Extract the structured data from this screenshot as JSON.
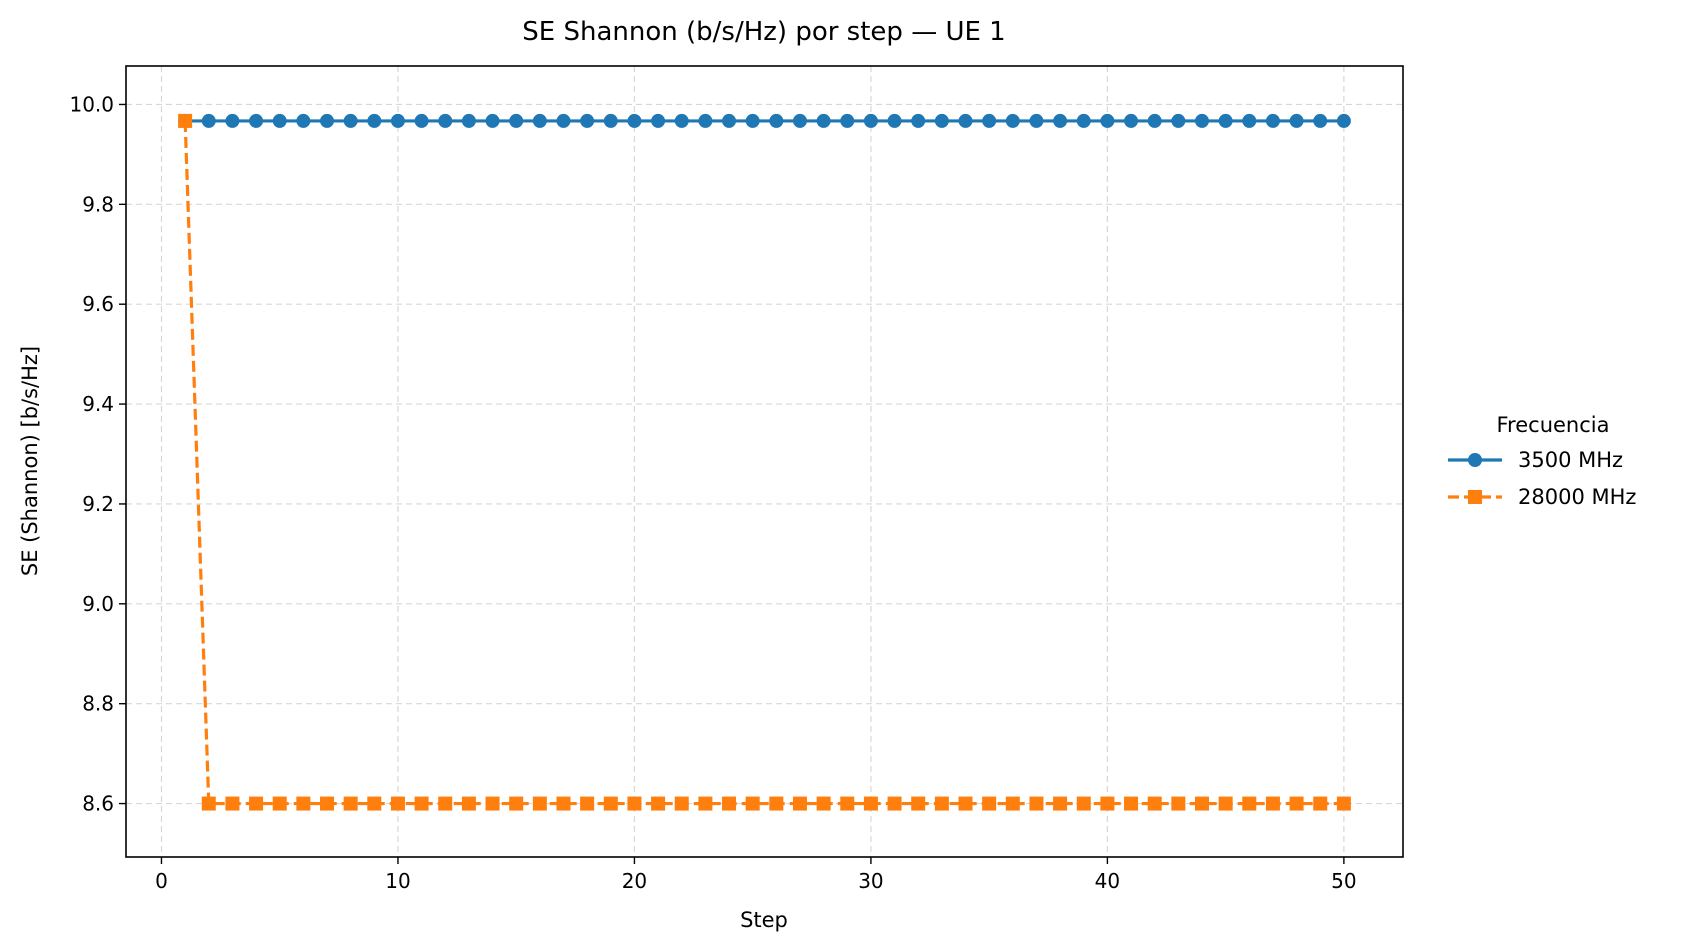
{
  "chart_data": {
    "type": "line",
    "title": "SE Shannon (b/s/Hz) por step — UE 1",
    "xlabel": "Step",
    "ylabel": "SE (Shannon) [b/s/Hz]",
    "xlim": [
      -1.5,
      52.5
    ],
    "ylim": [
      8.493,
      10.077
    ],
    "xticks": [
      0,
      10,
      20,
      30,
      40,
      50
    ],
    "yticks": [
      8.6,
      8.8,
      9.0,
      9.2,
      9.4,
      9.6,
      9.8,
      10.0
    ],
    "xtick_labels": [
      "0",
      "10",
      "20",
      "30",
      "40",
      "50"
    ],
    "ytick_labels": [
      "8.6",
      "8.8",
      "9.0",
      "9.2",
      "9.4",
      "9.6",
      "9.8",
      "10.0"
    ],
    "grid": true,
    "legend": {
      "title": "Frecuencia",
      "placement": "outside-right"
    },
    "x": [
      1,
      2,
      3,
      4,
      5,
      6,
      7,
      8,
      9,
      10,
      11,
      12,
      13,
      14,
      15,
      16,
      17,
      18,
      19,
      20,
      21,
      22,
      23,
      24,
      25,
      26,
      27,
      28,
      29,
      30,
      31,
      32,
      33,
      34,
      35,
      36,
      37,
      38,
      39,
      40,
      41,
      42,
      43,
      44,
      45,
      46,
      47,
      48,
      49,
      50
    ],
    "series": [
      {
        "name": "3500 MHz",
        "color": "#1f77b4",
        "line_style": "solid",
        "marker": "circle",
        "values": [
          9.967,
          9.967,
          9.967,
          9.967,
          9.967,
          9.967,
          9.967,
          9.967,
          9.967,
          9.967,
          9.967,
          9.967,
          9.967,
          9.967,
          9.967,
          9.967,
          9.967,
          9.967,
          9.967,
          9.967,
          9.967,
          9.967,
          9.967,
          9.967,
          9.967,
          9.967,
          9.967,
          9.967,
          9.967,
          9.967,
          9.967,
          9.967,
          9.967,
          9.967,
          9.967,
          9.967,
          9.967,
          9.967,
          9.967,
          9.967,
          9.967,
          9.967,
          9.967,
          9.967,
          9.967,
          9.967,
          9.967,
          9.967,
          9.967,
          9.967
        ]
      },
      {
        "name": "28000 MHz",
        "color": "#ff7f0e",
        "line_style": "dashed",
        "marker": "square",
        "values": [
          9.967,
          8.6,
          8.6,
          8.6,
          8.6,
          8.6,
          8.6,
          8.6,
          8.6,
          8.6,
          8.6,
          8.6,
          8.6,
          8.6,
          8.6,
          8.6,
          8.6,
          8.6,
          8.6,
          8.6,
          8.6,
          8.6,
          8.6,
          8.6,
          8.6,
          8.6,
          8.6,
          8.6,
          8.6,
          8.6,
          8.6,
          8.6,
          8.6,
          8.6,
          8.6,
          8.6,
          8.6,
          8.6,
          8.6,
          8.6,
          8.6,
          8.6,
          8.6,
          8.6,
          8.6,
          8.6,
          8.6,
          8.6,
          8.6,
          8.6
        ]
      }
    ]
  }
}
